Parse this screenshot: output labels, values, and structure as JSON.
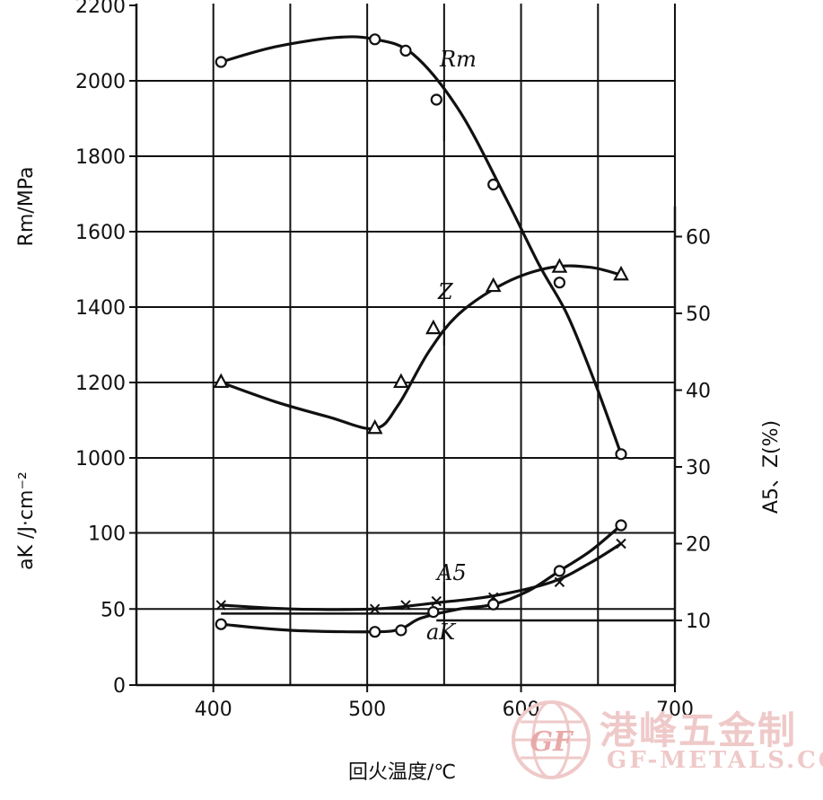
{
  "chart_data": {
    "type": "line",
    "xlabel": "回火温度/℃",
    "ylabel_left_upper": "Rm/MPa",
    "ylabel_left_lower": "aK /J·cm⁻²",
    "ylabel_right": "A5、Z(%)",
    "x_ticks": [
      "400",
      "500",
      "600",
      "700"
    ],
    "x_range": [
      350,
      700
    ],
    "left_upper_ticks": [
      "1000",
      "1200",
      "1400",
      "1600",
      "1800",
      "2000",
      "2200"
    ],
    "left_upper_range": [
      1000,
      2200
    ],
    "left_lower_ticks": [
      "0",
      "50",
      "100"
    ],
    "left_lower_range": [
      0,
      100
    ],
    "right_ticks": [
      "10",
      "20",
      "30",
      "40",
      "50",
      "60"
    ],
    "right_range": [
      0,
      60
    ],
    "grid": true,
    "series": [
      {
        "name": "Rm",
        "axis": "left_upper",
        "marker": "circle",
        "points": [
          [
            405,
            2050
          ],
          [
            505,
            2110
          ],
          [
            525,
            2080
          ],
          [
            545,
            1950
          ],
          [
            582,
            1725
          ],
          [
            625,
            1465
          ],
          [
            665,
            1010
          ]
        ],
        "curve": [
          [
            405,
            2050
          ],
          [
            440,
            2090
          ],
          [
            480,
            2115
          ],
          [
            505,
            2110
          ],
          [
            530,
            2070
          ],
          [
            560,
            1920
          ],
          [
            590,
            1690
          ],
          [
            612,
            1510
          ],
          [
            630,
            1380
          ],
          [
            648,
            1200
          ],
          [
            665,
            1010
          ]
        ]
      },
      {
        "name": "Z",
        "axis": "right",
        "marker": "triangle",
        "points": [
          [
            405,
            41
          ],
          [
            505,
            35
          ],
          [
            522,
            41
          ],
          [
            543,
            48
          ],
          [
            582,
            53.5
          ],
          [
            625,
            56
          ],
          [
            665,
            55
          ]
        ],
        "curve": [
          [
            405,
            41
          ],
          [
            440,
            38.5
          ],
          [
            475,
            36.5
          ],
          [
            505,
            35
          ],
          [
            520,
            38
          ],
          [
            540,
            45
          ],
          [
            560,
            50
          ],
          [
            590,
            54
          ],
          [
            620,
            56
          ],
          [
            645,
            56
          ],
          [
            665,
            55
          ]
        ]
      },
      {
        "name": "A5",
        "axis": "right",
        "marker": "x",
        "points": [
          [
            405,
            12
          ],
          [
            505,
            11.5
          ],
          [
            525,
            12
          ],
          [
            545,
            12.5
          ],
          [
            582,
            13
          ],
          [
            625,
            15
          ],
          [
            665,
            20
          ]
        ],
        "curve": [
          [
            405,
            12
          ],
          [
            450,
            11.5
          ],
          [
            505,
            11.5
          ],
          [
            545,
            12.3
          ],
          [
            582,
            13.2
          ],
          [
            620,
            15
          ],
          [
            645,
            17.5
          ],
          [
            665,
            20
          ]
        ]
      },
      {
        "name": "aK",
        "axis": "left_lower",
        "marker": "circle",
        "points": [
          [
            405,
            40
          ],
          [
            505,
            35
          ],
          [
            522,
            36
          ],
          [
            543,
            48
          ],
          [
            582,
            53
          ],
          [
            625,
            75
          ],
          [
            665,
            105
          ]
        ],
        "curve": [
          [
            405,
            40
          ],
          [
            450,
            36
          ],
          [
            505,
            35
          ],
          [
            522,
            37
          ],
          [
            535,
            44
          ],
          [
            560,
            50
          ],
          [
            582,
            53
          ],
          [
            605,
            62
          ],
          [
            625,
            75
          ],
          [
            645,
            88
          ],
          [
            665,
            105
          ]
        ]
      }
    ],
    "reference_lines": [
      {
        "axis": "left_lower",
        "value": 47,
        "x_from": 405,
        "x_to": 545
      },
      {
        "axis": "right",
        "value": 10,
        "x_from": 545,
        "x_to": 700
      }
    ]
  },
  "watermark": {
    "cn": "港峰五金制",
    "en": "GF-METALS.CO",
    "logo_text": "GF"
  }
}
